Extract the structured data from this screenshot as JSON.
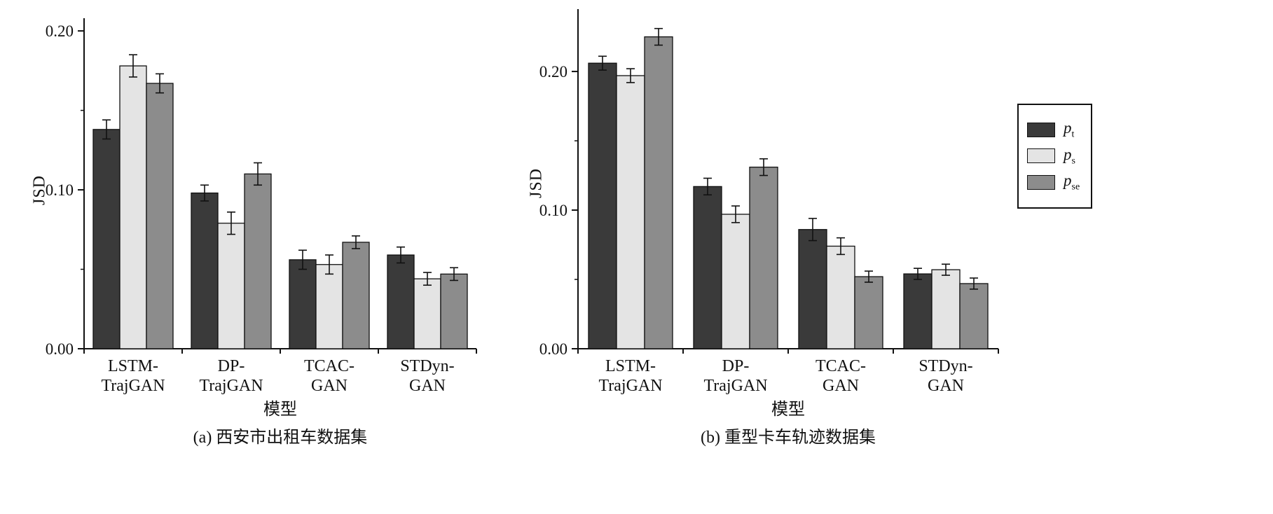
{
  "chart_data": [
    {
      "type": "bar",
      "title": "(a) 西安市出租车数据集",
      "xlabel": "模型",
      "ylabel": "JSD",
      "categories": [
        "LSTM-\nTrajGAN",
        "DP-\nTrajGAN",
        "TCAC-\nGAN",
        "STDyn-\nGAN"
      ],
      "series": [
        {
          "name": "pt",
          "color": "#3a3a3a",
          "values": [
            0.138,
            0.098,
            0.056,
            0.059
          ],
          "errors": [
            0.006,
            0.005,
            0.006,
            0.005
          ]
        },
        {
          "name": "ps",
          "color": "#e4e4e4",
          "values": [
            0.178,
            0.079,
            0.053,
            0.044
          ],
          "errors": [
            0.007,
            0.007,
            0.006,
            0.004
          ]
        },
        {
          "name": "pse",
          "color": "#8c8c8c",
          "values": [
            0.167,
            0.11,
            0.067,
            0.047
          ],
          "errors": [
            0.006,
            0.007,
            0.004,
            0.004
          ]
        }
      ],
      "ylim": [
        0,
        0.208
      ],
      "yticks_major": [
        0,
        0.1,
        0.2
      ],
      "ytick_labels": [
        "0.00",
        "0.10",
        "0.20"
      ],
      "yticks_minor": [
        0.05,
        0.15
      ],
      "grid": false,
      "legend_position": "outside-right"
    },
    {
      "type": "bar",
      "title": "(b) 重型卡车轨迹数据集",
      "xlabel": "模型",
      "ylabel": "JSD",
      "categories": [
        "LSTM-\nTrajGAN",
        "DP-\nTrajGAN",
        "TCAC-\nGAN",
        "STDyn-\nGAN"
      ],
      "series": [
        {
          "name": "pt",
          "color": "#3a3a3a",
          "values": [
            0.206,
            0.117,
            0.086,
            0.054
          ],
          "errors": [
            0.005,
            0.006,
            0.008,
            0.004
          ]
        },
        {
          "name": "ps",
          "color": "#e4e4e4",
          "values": [
            0.197,
            0.097,
            0.074,
            0.057
          ],
          "errors": [
            0.005,
            0.006,
            0.006,
            0.004
          ]
        },
        {
          "name": "pse",
          "color": "#8c8c8c",
          "values": [
            0.225,
            0.131,
            0.052,
            0.047
          ],
          "errors": [
            0.006,
            0.006,
            0.004,
            0.004
          ]
        }
      ],
      "ylim": [
        0,
        0.245
      ],
      "yticks_major": [
        0,
        0.1,
        0.2
      ],
      "ytick_labels": [
        "0.00",
        "0.10",
        "0.20"
      ],
      "yticks_minor": [
        0.05,
        0.15
      ],
      "grid": false,
      "legend_position": "outside-right"
    }
  ],
  "legend": {
    "entries": [
      {
        "main": "p",
        "sub": "t",
        "color": "#3a3a3a"
      },
      {
        "main": "p",
        "sub": "s",
        "color": "#e4e4e4"
      },
      {
        "main": "p",
        "sub": "se",
        "color": "#8c8c8c"
      }
    ]
  },
  "colors": {
    "axis": "#111111",
    "bar_border": "#111111",
    "background": "#ffffff"
  }
}
